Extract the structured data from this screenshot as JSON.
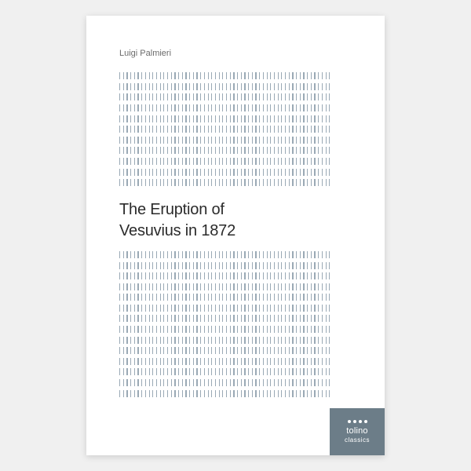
{
  "author": "Luigi Palmieri",
  "title_line1": "The Eruption of",
  "title_line2": "Vesuvius in 1872",
  "badge": {
    "brand": "tolino",
    "sub": "classics",
    "bg": "#6c7d88",
    "fg": "#ffffff"
  },
  "colors": {
    "page_bg": "#f0f0f0",
    "cover_bg": "#ffffff",
    "tick": "#9aa9b5",
    "author_text": "#6b6b6b",
    "title_text": "#2b2b2b"
  },
  "layout": {
    "cover_w": 380,
    "cover_h": 560,
    "tick_rows_top": 11,
    "tick_rows_bottom": 14,
    "ticks_per_row": 58
  },
  "typography": {
    "author_fontsize": 11,
    "title_fontsize": 20,
    "badge_brand_fontsize": 11,
    "badge_sub_fontsize": 8
  }
}
